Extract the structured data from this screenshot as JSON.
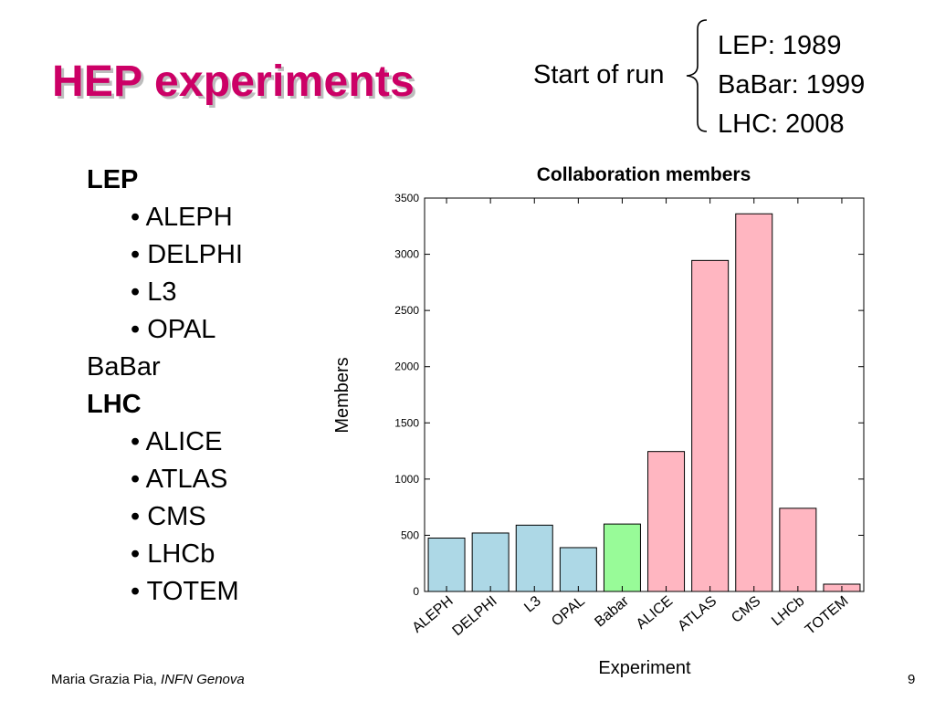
{
  "slide": {
    "title": "HEP experiments",
    "start_of_run": {
      "label": "Start of run",
      "entries": [
        "LEP: 1989",
        "BaBar: 1999",
        "LHC: 2008"
      ]
    },
    "experiments": {
      "lep": {
        "label": "LEP",
        "items": [
          "• ALEPH",
          "• DELPHI",
          "• L3",
          "• OPAL"
        ]
      },
      "babar": {
        "label": "BaBar"
      },
      "lhc": {
        "label": "LHC",
        "items": [
          "• ALICE",
          "• ATLAS",
          "• CMS",
          "• LHCb",
          "• TOTEM"
        ]
      }
    },
    "footer": {
      "author": "Maria Grazia Pia,",
      "affiliation": "INFN Genova",
      "page_number": "9"
    },
    "colors": {
      "title": "#cc0066",
      "title_shadow": "#bdbdbd"
    }
  },
  "chart_data": {
    "type": "bar",
    "title": "Collaboration members",
    "xlabel": "Experiment",
    "ylabel": "Members",
    "ylim": [
      0,
      3500
    ],
    "yticks": [
      0,
      500,
      1000,
      1500,
      2000,
      2500,
      3000,
      3500
    ],
    "categories": [
      "ALEPH",
      "DELPHI",
      "L3",
      "OPAL",
      "Babar",
      "ALICE",
      "ATLAS",
      "CMS",
      "LHCb",
      "TOTEM"
    ],
    "values": [
      475,
      520,
      590,
      390,
      600,
      1245,
      2945,
      3360,
      740,
      65
    ],
    "bar_colors": [
      "#add8e6",
      "#add8e6",
      "#add8e6",
      "#add8e6",
      "#98fb98",
      "#ffb6c1",
      "#ffb6c1",
      "#ffb6c1",
      "#ffb6c1",
      "#ffb6c1"
    ],
    "grid": false,
    "legend": "none"
  }
}
